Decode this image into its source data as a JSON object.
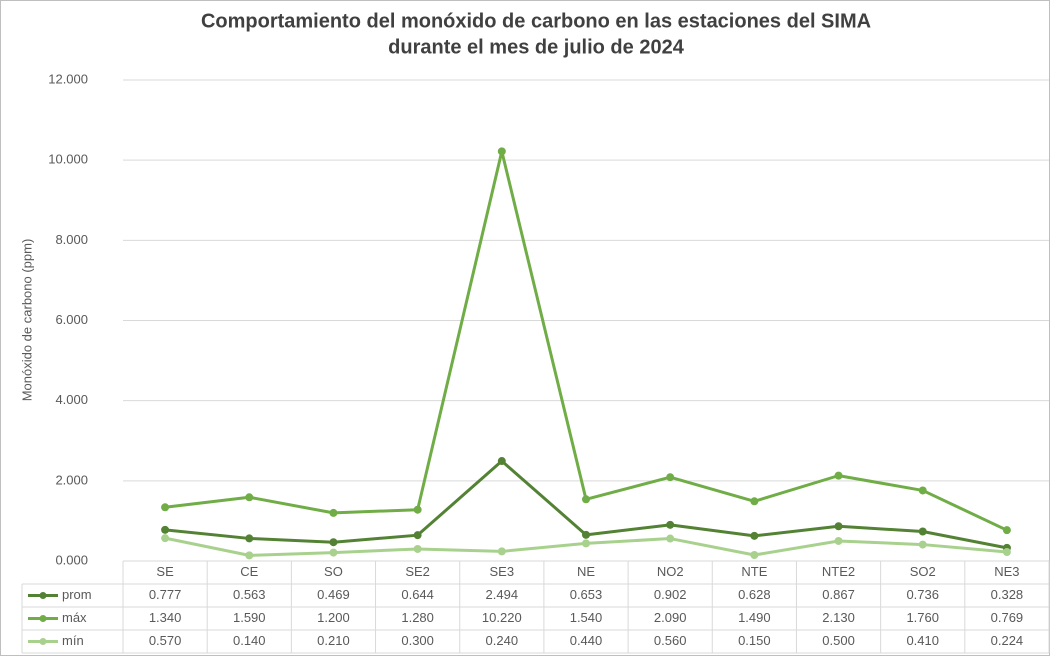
{
  "chart_data": {
    "type": "line",
    "title": [
      "Comportamiento del monóxido de carbono en las estaciones del SIMA",
      "durante el mes de julio de 2024"
    ],
    "y_label": "Monóxido de carbono (ppm)",
    "categories": [
      "SE",
      "CE",
      "SO",
      "SE2",
      "SE3",
      "NE",
      "NO2",
      "NTE",
      "NTE2",
      "SO2",
      "NE3"
    ],
    "series": [
      {
        "name": "prom",
        "color": "#548235",
        "values": [
          0.777,
          0.563,
          0.469,
          0.644,
          2.494,
          0.653,
          0.902,
          0.628,
          0.867,
          0.736,
          0.328
        ],
        "value_labels": [
          "0.777",
          "0.563",
          "0.469",
          "0.644",
          "2.494",
          "0.653",
          "0.902",
          "0.628",
          "0.867",
          "0.736",
          "0.328"
        ]
      },
      {
        "name": "máx",
        "color": "#70ad47",
        "values": [
          1.34,
          1.59,
          1.2,
          1.28,
          10.22,
          1.54,
          2.09,
          1.49,
          2.13,
          1.76,
          0.769
        ],
        "value_labels": [
          "1.340",
          "1.590",
          "1.200",
          "1.280",
          "10.220",
          "1.540",
          "2.090",
          "1.490",
          "2.130",
          "1.760",
          "0.769"
        ]
      },
      {
        "name": "mín",
        "color": "#a9d18e",
        "values": [
          0.57,
          0.14,
          0.21,
          0.3,
          0.24,
          0.44,
          0.56,
          0.15,
          0.5,
          0.41,
          0.224
        ],
        "value_labels": [
          "0.570",
          "0.140",
          "0.210",
          "0.300",
          "0.240",
          "0.440",
          "0.560",
          "0.150",
          "0.500",
          "0.410",
          "0.224"
        ]
      }
    ],
    "ylim": [
      0,
      12
    ],
    "yticks": [
      {
        "value": 0,
        "label": "0.000"
      },
      {
        "value": 2,
        "label": "2.000"
      },
      {
        "value": 4,
        "label": "4.000"
      },
      {
        "value": 6,
        "label": "6.000"
      },
      {
        "value": 8,
        "label": "8.000"
      },
      {
        "value": 10,
        "label": "10.000"
      },
      {
        "value": 12,
        "label": "12.000"
      }
    ],
    "grid": true
  }
}
